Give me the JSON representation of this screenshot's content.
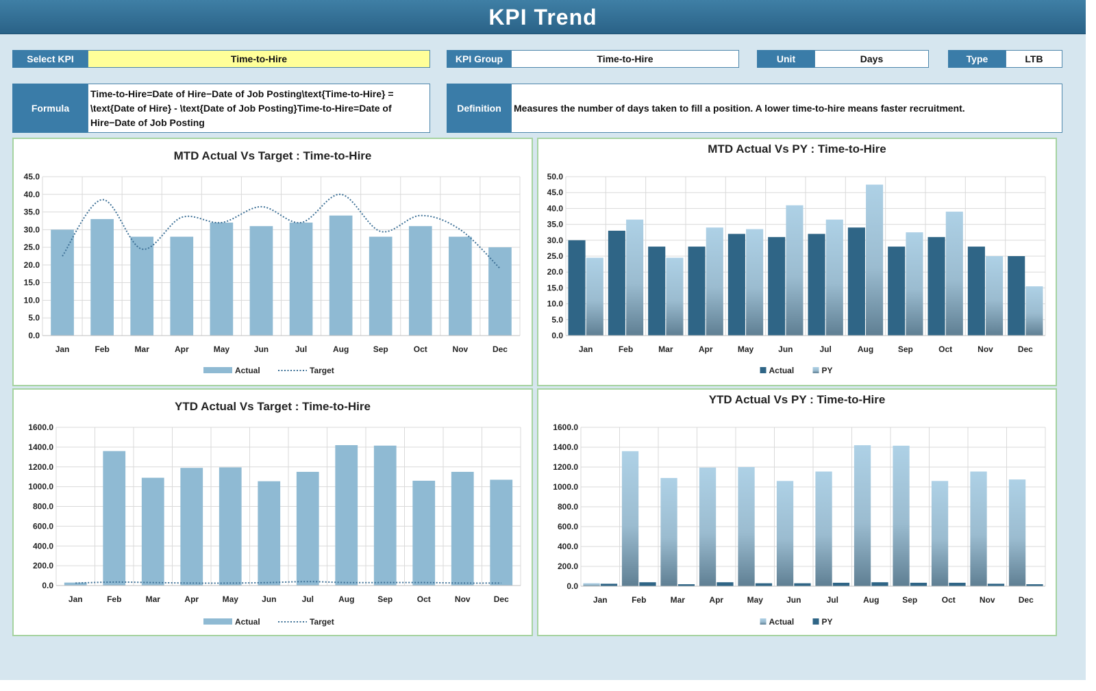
{
  "header": {
    "title": "KPI Trend"
  },
  "filters": {
    "select_kpi_label": "Select KPI",
    "select_kpi_value": "Time-to-Hire",
    "kpi_group_label": "KPI Group",
    "kpi_group_value": "Time-to-Hire",
    "unit_label": "Unit",
    "unit_value": "Days",
    "type_label": "Type",
    "type_value": "LTB",
    "formula_label": "Formula",
    "formula_value": "Time-to-Hire=Date of Hire−Date of Job Posting\\text{Time-to-Hire} = \\text{Date of Hire} - \\text{Date of Job Posting}Time-to-Hire=Date of Hire−Date of Job Posting",
    "definition_label": "Definition",
    "definition_value": "Measures the number of days taken to fill a position. A lower time-to-hire means faster recruitment."
  },
  "colors": {
    "bar_light": "#8fbad3",
    "bar_dark": "#2f6586",
    "target_line": "#3d7096",
    "grid": "#d9d9d9",
    "panel_border": "#a6d3a0"
  },
  "chart_data": [
    {
      "id": "mtd_target",
      "type": "bar",
      "title": "MTD Actual Vs Target : Time-to-Hire",
      "categories": [
        "Jan",
        "Feb",
        "Mar",
        "Apr",
        "May",
        "Jun",
        "Jul",
        "Aug",
        "Sep",
        "Oct",
        "Nov",
        "Dec"
      ],
      "series": [
        {
          "name": "Actual",
          "kind": "bar",
          "values": [
            30,
            33,
            28,
            28,
            32,
            31,
            32,
            34,
            28,
            31,
            28,
            25
          ]
        },
        {
          "name": "Target",
          "kind": "line",
          "values": [
            22.5,
            38.5,
            24.5,
            33.5,
            32,
            36.5,
            32,
            40,
            29.5,
            34,
            30,
            19
          ]
        }
      ],
      "ylim": [
        0,
        45
      ],
      "ytick_step": 5,
      "yticks": [
        "0.0",
        "5.0",
        "10.0",
        "15.0",
        "20.0",
        "25.0",
        "30.0",
        "35.0",
        "40.0",
        "45.0"
      ],
      "legend": "bottom",
      "grid": true
    },
    {
      "id": "mtd_py",
      "type": "bar",
      "title": "MTD Actual Vs PY : Time-to-Hire",
      "categories": [
        "Jan",
        "Feb",
        "Mar",
        "Apr",
        "May",
        "Jun",
        "Jul",
        "Aug",
        "Sep",
        "Oct",
        "Nov",
        "Dec"
      ],
      "series": [
        {
          "name": "Actual",
          "kind": "bar",
          "values": [
            30,
            33,
            28,
            28,
            32,
            31,
            32,
            34,
            28,
            31,
            28,
            25
          ]
        },
        {
          "name": "PY",
          "kind": "bar",
          "values": [
            24.5,
            36.5,
            24.5,
            34,
            33.5,
            41,
            36.5,
            47.5,
            32.5,
            39,
            25,
            15.5
          ]
        }
      ],
      "ylim": [
        0,
        50
      ],
      "ytick_step": 5,
      "yticks": [
        "0.0",
        "5.0",
        "10.0",
        "15.0",
        "20.0",
        "25.0",
        "30.0",
        "35.0",
        "40.0",
        "45.0",
        "50.0"
      ],
      "legend": "bottom",
      "grid": true
    },
    {
      "id": "ytd_target",
      "type": "bar",
      "title": "YTD Actual Vs Target : Time-to-Hire",
      "categories": [
        "Jan",
        "Feb",
        "Mar",
        "Apr",
        "May",
        "Jun",
        "Jul",
        "Aug",
        "Sep",
        "Oct",
        "Nov",
        "Dec"
      ],
      "series": [
        {
          "name": "Actual",
          "kind": "bar",
          "values": [
            30,
            1360,
            1090,
            1190,
            1195,
            1055,
            1150,
            1420,
            1415,
            1060,
            1150,
            1070
          ]
        },
        {
          "name": "Target",
          "kind": "line",
          "values": [
            25,
            35,
            30,
            25,
            25,
            30,
            40,
            30,
            30,
            30,
            25,
            25
          ]
        }
      ],
      "ylim": [
        0,
        1600
      ],
      "ytick_step": 200,
      "yticks": [
        "0.0",
        "200.0",
        "400.0",
        "600.0",
        "800.0",
        "1000.0",
        "1200.0",
        "1400.0",
        "1600.0"
      ],
      "legend": "bottom",
      "grid": true
    },
    {
      "id": "ytd_py",
      "type": "bar",
      "title": "YTD Actual Vs PY : Time-to-Hire",
      "categories": [
        "Jan",
        "Feb",
        "Mar",
        "Apr",
        "May",
        "Jun",
        "Jul",
        "Aug",
        "Sep",
        "Oct",
        "Nov",
        "Dec"
      ],
      "series": [
        {
          "name": "Actual",
          "kind": "bar",
          "values": [
            30,
            1360,
            1090,
            1195,
            1200,
            1060,
            1155,
            1420,
            1415,
            1060,
            1155,
            1075
          ]
        },
        {
          "name": "PY",
          "kind": "bar",
          "values": [
            25,
            40,
            20,
            40,
            30,
            30,
            35,
            40,
            35,
            35,
            25,
            20
          ]
        }
      ],
      "ylim": [
        0,
        1600
      ],
      "ytick_step": 200,
      "yticks": [
        "0.0",
        "200.0",
        "400.0",
        "600.0",
        "800.0",
        "1000.0",
        "1200.0",
        "1400.0",
        "1600.0"
      ],
      "legend": "bottom",
      "grid": true
    }
  ]
}
